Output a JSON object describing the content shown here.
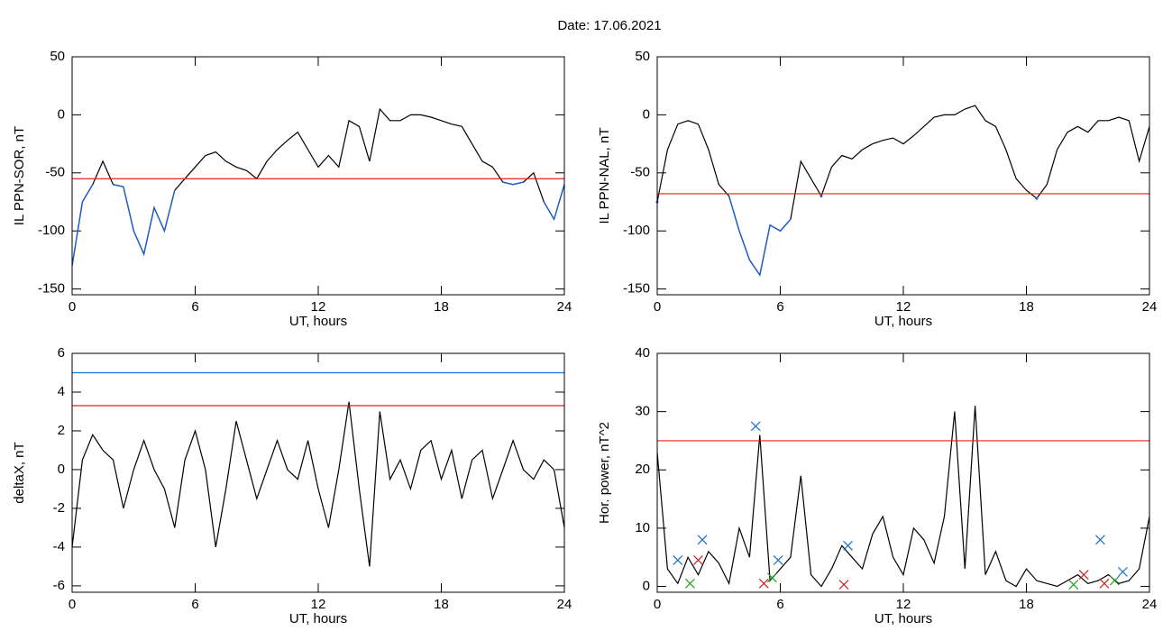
{
  "title": "Date:  17.06.2021",
  "chart_data": [
    {
      "type": "line",
      "ylabel": "IL PPN-SOR, nT",
      "xlabel": "UT, hours",
      "xlim": [
        0,
        24
      ],
      "xticks": [
        0,
        6,
        12,
        18,
        24
      ],
      "ylim": [
        -155,
        50
      ],
      "yticks": [
        -150,
        -100,
        -50,
        0,
        50
      ],
      "x": [
        0,
        0.5,
        1,
        1.5,
        2,
        2.5,
        3,
        3.5,
        4,
        4.5,
        5,
        5.5,
        6,
        6.5,
        7,
        7.5,
        8,
        8.5,
        9,
        9.5,
        10,
        10.5,
        11,
        11.5,
        12,
        12.5,
        13,
        13.5,
        14,
        14.5,
        15,
        15.5,
        16,
        16.5,
        17,
        17.5,
        18,
        18.5,
        19,
        19.5,
        20,
        20.5,
        21,
        21.5,
        22,
        22.5,
        23,
        23.5,
        24
      ],
      "series": [
        {
          "color": "#000000",
          "highlight": {
            "below": -55,
            "color": "#1a5fd0"
          },
          "values": [
            -130,
            -75,
            -60,
            -40,
            -60,
            -62,
            -100,
            -120,
            -80,
            -100,
            -65,
            -55,
            -45,
            -35,
            -32,
            -40,
            -45,
            -48,
            -55,
            -40,
            -30,
            -22,
            -15,
            -30,
            -45,
            -35,
            -45,
            -5,
            -10,
            -40,
            5,
            -5,
            -5,
            0,
            0,
            -2,
            -5,
            -8,
            -10,
            -25,
            -40,
            -45,
            -58,
            -60,
            -58,
            -50,
            -75,
            -90,
            -60
          ]
        }
      ],
      "hlines": [
        {
          "value": -55,
          "color": "#e02020"
        }
      ]
    },
    {
      "type": "line",
      "ylabel": "IL PPN-NAL, nT",
      "xlabel": "UT, hours",
      "xlim": [
        0,
        24
      ],
      "xticks": [
        0,
        6,
        12,
        18,
        24
      ],
      "ylim": [
        -155,
        50
      ],
      "yticks": [
        -150,
        -100,
        -50,
        0,
        50
      ],
      "x": [
        0,
        0.5,
        1,
        1.5,
        2,
        2.5,
        3,
        3.5,
        4,
        4.5,
        5,
        5.5,
        6,
        6.5,
        7,
        7.5,
        8,
        8.5,
        9,
        9.5,
        10,
        10.5,
        11,
        11.5,
        12,
        12.5,
        13,
        13.5,
        14,
        14.5,
        15,
        15.5,
        16,
        16.5,
        17,
        17.5,
        18,
        18.5,
        19,
        19.5,
        20,
        20.5,
        21,
        21.5,
        22,
        22.5,
        23,
        23.5,
        24
      ],
      "series": [
        {
          "color": "#000000",
          "highlight": {
            "below": -68,
            "color": "#1a5fd0"
          },
          "values": [
            -75,
            -30,
            -8,
            -5,
            -8,
            -30,
            -60,
            -70,
            -100,
            -125,
            -138,
            -95,
            -100,
            -90,
            -40,
            -55,
            -70,
            -45,
            -35,
            -38,
            -30,
            -25,
            -22,
            -20,
            -25,
            -18,
            -10,
            -2,
            0,
            0,
            5,
            8,
            -5,
            -10,
            -30,
            -55,
            -65,
            -72,
            -60,
            -30,
            -15,
            -10,
            -15,
            -5,
            -5,
            -2,
            -5,
            -40,
            -10
          ]
        }
      ],
      "hlines": [
        {
          "value": -68,
          "color": "#e02020"
        }
      ]
    },
    {
      "type": "line",
      "ylabel": "deltaX, nT",
      "xlabel": "UT, hours",
      "xlim": [
        0,
        24
      ],
      "xticks": [
        0,
        6,
        12,
        18,
        24
      ],
      "ylim": [
        -6.33,
        6
      ],
      "yticks": [
        -6,
        -4,
        -2,
        0,
        2,
        4,
        6
      ],
      "x": [
        0,
        0.5,
        1,
        1.5,
        2,
        2.5,
        3,
        3.5,
        4,
        4.5,
        5,
        5.5,
        6,
        6.5,
        7,
        7.5,
        8,
        8.5,
        9,
        9.5,
        10,
        10.5,
        11,
        11.5,
        12,
        12.5,
        13,
        13.5,
        14,
        14.5,
        15,
        15.5,
        16,
        16.5,
        17,
        17.5,
        18,
        18.5,
        19,
        19.5,
        20,
        20.5,
        21,
        21.5,
        22,
        22.5,
        23,
        23.5,
        24
      ],
      "series": [
        {
          "color": "#000000",
          "values": [
            -4,
            0.5,
            1.8,
            1,
            0.5,
            -2,
            0,
            1.5,
            0,
            -1,
            -3,
            0.5,
            2,
            0,
            -4,
            -1,
            2.5,
            0.5,
            -1.5,
            0,
            1.5,
            0,
            -0.5,
            1.5,
            -1,
            -3,
            0,
            3.5,
            -1,
            -5,
            3,
            -0.5,
            0.5,
            -1,
            1,
            1.5,
            -0.5,
            1,
            -1.5,
            0.5,
            1,
            -1.5,
            0,
            1.5,
            0,
            -0.5,
            0.5,
            0,
            -3
          ]
        }
      ],
      "hlines": [
        {
          "value": 5,
          "color": "#1a6fd0"
        },
        {
          "value": 3.3,
          "color": "#e02020"
        }
      ]
    },
    {
      "type": "line",
      "ylabel": "Hor. power, nT^2",
      "xlabel": "UT, hours",
      "xlim": [
        0,
        24
      ],
      "xticks": [
        0,
        6,
        12,
        18,
        24
      ],
      "ylim": [
        -1,
        40
      ],
      "yticks": [
        0,
        10,
        20,
        30,
        40
      ],
      "x": [
        0,
        0.5,
        1,
        1.5,
        2,
        2.5,
        3,
        3.5,
        4,
        4.5,
        5,
        5.5,
        6,
        6.5,
        7,
        7.5,
        8,
        8.5,
        9,
        9.5,
        10,
        10.5,
        11,
        11.5,
        12,
        12.5,
        13,
        13.5,
        14,
        14.5,
        15,
        15.5,
        16,
        16.5,
        17,
        17.5,
        18,
        18.5,
        19,
        19.5,
        20,
        20.5,
        21,
        21.5,
        22,
        22.5,
        23,
        23.5,
        24
      ],
      "series": [
        {
          "color": "#000000",
          "values": [
            23,
            3,
            0.5,
            5,
            2,
            6,
            4,
            0.5,
            10,
            5,
            26,
            1,
            3,
            5,
            19,
            2,
            0,
            3,
            7,
            5,
            3,
            9,
            12,
            5,
            2,
            10,
            8,
            4,
            12,
            30,
            3,
            31,
            2,
            6,
            1,
            0,
            3,
            1,
            0.5,
            0,
            1,
            2,
            0.5,
            1,
            2,
            0.5,
            1,
            3,
            12
          ]
        }
      ],
      "hlines": [
        {
          "value": 25,
          "color": "#e02020"
        }
      ],
      "markers": [
        {
          "color": "#1a6fd0",
          "x": [
            1,
            2.2,
            4.8,
            5.9,
            9.3,
            21.6,
            22.7
          ],
          "values": [
            4.5,
            8,
            27.5,
            4.5,
            7,
            8,
            2.5
          ]
        },
        {
          "color": "#d02020",
          "x": [
            2,
            5.2,
            9.1,
            20.8,
            21.8
          ],
          "values": [
            4.5,
            0.5,
            0.3,
            2,
            0.5
          ]
        },
        {
          "color": "#20a020",
          "x": [
            1.6,
            5.6,
            20.3,
            22.3
          ],
          "values": [
            0.5,
            1.5,
            0.3,
            1
          ]
        }
      ]
    }
  ]
}
